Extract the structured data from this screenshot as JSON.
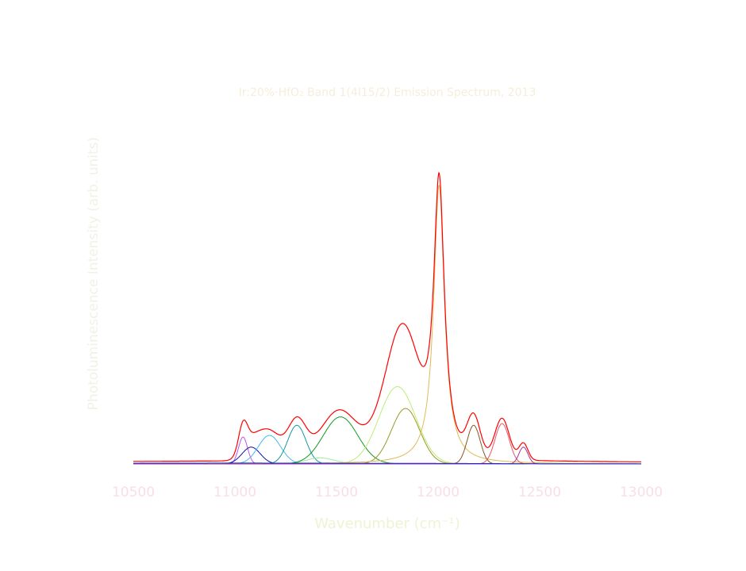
{
  "chart_data": {
    "type": "line",
    "title": "Ir:20%·HfO₂ Band 1(4I15/2) Emission Spectrum, 2013",
    "xlabel": "Wavenumber (cm⁻¹)",
    "ylabel": "Photoluminescence Intensity (arb. units)",
    "xlim": [
      10500,
      13000
    ],
    "ylim": [
      0,
      1.05
    ],
    "x_ticks": [
      10500,
      11000,
      11500,
      12000,
      12500,
      13000
    ],
    "x_tick_labels": [
      "10500",
      "11000",
      "11500",
      "12000",
      "12500",
      "13000"
    ],
    "grid": false,
    "legend": "none",
    "sum_color": "#ff0000",
    "components": [
      {
        "center": 11040,
        "width": 22,
        "amplitude": 0.08,
        "shape": "gauss",
        "color": "#bb55ee"
      },
      {
        "center": 11080,
        "width": 45,
        "amplitude": 0.05,
        "shape": "gauss",
        "color": "#1111aa"
      },
      {
        "center": 11170,
        "width": 55,
        "amplitude": 0.085,
        "shape": "gauss",
        "color": "#44bbee"
      },
      {
        "center": 11305,
        "width": 45,
        "amplitude": 0.115,
        "shape": "gauss",
        "color": "#119999"
      },
      {
        "center": 11420,
        "width": 70,
        "amplitude": 0.018,
        "shape": "gauss",
        "color": "#99ee99"
      },
      {
        "center": 11520,
        "width": 85,
        "amplitude": 0.14,
        "shape": "gauss",
        "color": "#119922"
      },
      {
        "center": 11800,
        "width": 90,
        "amplitude": 0.23,
        "shape": "gauss",
        "color": "#bbee77"
      },
      {
        "center": 11840,
        "width": 70,
        "amplitude": 0.165,
        "shape": "gauss",
        "color": "#999922"
      },
      {
        "center": 12005,
        "width": 32,
        "amplitude": 0.83,
        "shape": "lorentz",
        "color": "#ddbb55"
      },
      {
        "center": 12175,
        "width": 32,
        "amplitude": 0.115,
        "shape": "gauss",
        "color": "#885522"
      },
      {
        "center": 12315,
        "width": 35,
        "amplitude": 0.12,
        "shape": "gauss",
        "color": "#ee5566"
      },
      {
        "center": 12420,
        "width": 22,
        "amplitude": 0.05,
        "shape": "gauss",
        "color": "#aa3399"
      },
      {
        "center": 11000,
        "width": 1000,
        "amplitude": 0.0025,
        "shape": "gauss",
        "color": "#1133cc"
      }
    ]
  }
}
